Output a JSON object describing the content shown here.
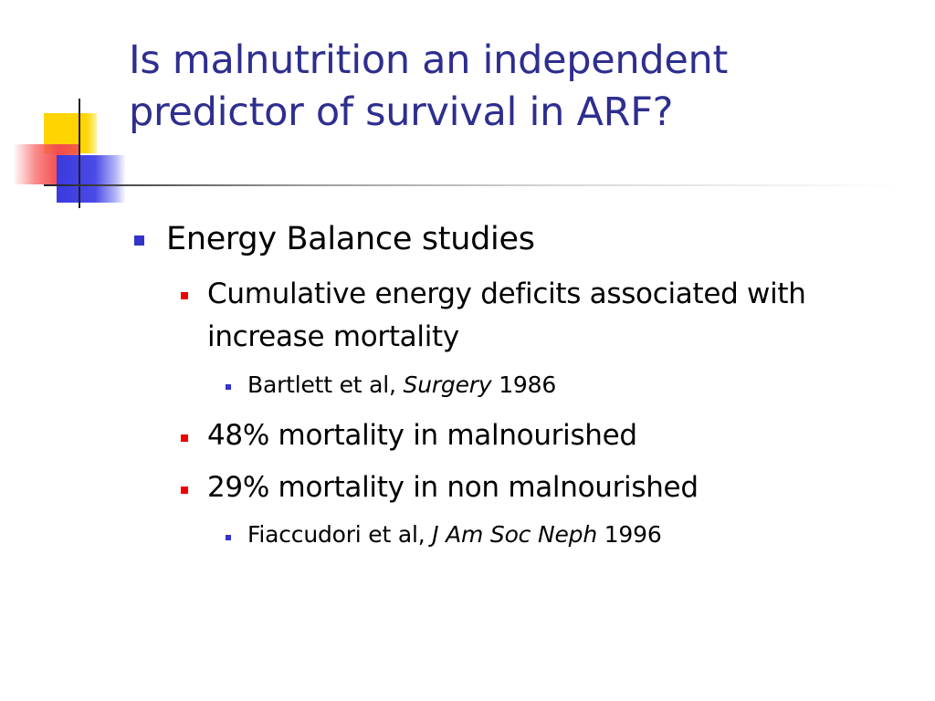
{
  "slide": {
    "title_line1": "Is malnutrition an independent",
    "title_line2": "predictor of survival in ARF?",
    "bullets": {
      "energy_balance": "Energy Balance studies",
      "cumulative_line1": "Cumulative energy deficits associated with",
      "cumulative_line2": "increase mortality",
      "bartlett_authors": "Bartlett et al, ",
      "bartlett_journal": "Surgery",
      "bartlett_year": " 1986",
      "malnourished": "48% mortality in malnourished",
      "non_malnourished": "29% mortality in non malnourished",
      "fiaccudori_authors": "Fiaccudori et al, ",
      "fiaccudori_journal": "J Am Soc Neph",
      "fiaccudori_year": " 1996"
    }
  },
  "colors": {
    "title": "#2e2e8f",
    "level1_bullet": "#3333cc",
    "level2_bullet": "#ee0000",
    "level3_bullet": "#3333cc",
    "logo_yellow": "#ffd400",
    "logo_red": "#f24c4c",
    "logo_blue": "#3a3adf"
  }
}
